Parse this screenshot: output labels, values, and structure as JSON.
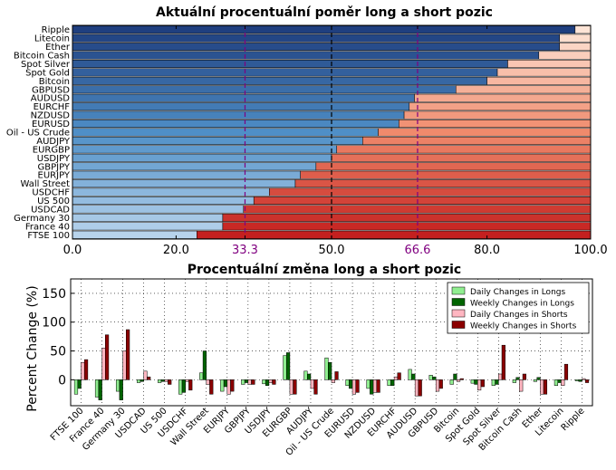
{
  "chart_data": [
    {
      "type": "bar",
      "orientation": "horizontal",
      "stacked": true,
      "title": "Aktuální procentuální poměr long a short pozic",
      "categories": [
        "Ripple",
        "Litecoin",
        "Ether",
        "Bitcoin Cash",
        "Spot Silver",
        "Spot Gold",
        "Bitcoin",
        "GBPUSD",
        "AUDUSD",
        "EURCHF",
        "NZDUSD",
        "EURUSD",
        "Oil - US Crude",
        "AUDJPY",
        "EURGBP",
        "USDJPY",
        "GBPJPY",
        "EURJPY",
        "Wall Street",
        "USDCHF",
        "US 500",
        "USDCAD",
        "Germany 30",
        "France 40",
        "FTSE 100"
      ],
      "series": [
        {
          "role": "long",
          "values": [
            97,
            94,
            94,
            90,
            84,
            82,
            80,
            74,
            66,
            65,
            64,
            63,
            59,
            56,
            51,
            50,
            47,
            44,
            43,
            38,
            35,
            33,
            29,
            29,
            24
          ]
        },
        {
          "role": "short",
          "values": [
            3,
            6,
            6,
            10,
            16,
            18,
            20,
            26,
            34,
            35,
            36,
            37,
            41,
            44,
            49,
            50,
            53,
            56,
            57,
            62,
            65,
            67,
            71,
            71,
            76
          ]
        }
      ],
      "xlim": [
        0,
        100
      ],
      "xticks": [
        "0.0",
        "20.0",
        "33.3",
        "50.0",
        "66.6",
        "80.0",
        "100.0"
      ],
      "reference_lines": [
        {
          "value": 33.3,
          "color": "#800080",
          "style": "dashed"
        },
        {
          "value": 50,
          "color": "#000000",
          "style": "dashed"
        },
        {
          "value": 66.6,
          "color": "#800080",
          "style": "dashed"
        }
      ],
      "colors": {
        "long_dark": "#1f3f7f",
        "long_mid": "#4f8fc7",
        "long_light": "#b7d3ec",
        "short_light": "#fde4d6",
        "short_mid": "#f08a6c",
        "short_dark": "#c4201f"
      }
    },
    {
      "type": "bar",
      "title": "Procentuální změna long a short pozic",
      "ylabel": "Percent Change (%)",
      "categories": [
        "FTSE 100",
        "France 40",
        "Germany 30",
        "USDCAD",
        "US 500",
        "USDCHF",
        "Wall Street",
        "EURJPY",
        "GBPJPY",
        "USDJPY",
        "EURGBP",
        "AUDJPY",
        "Oil - US Crude",
        "EURUSD",
        "NZDUSD",
        "EURCHF",
        "AUDUSD",
        "GBPUSD",
        "Bitcoin",
        "Spot Gold",
        "Spot Silver",
        "Bitcoin Cash",
        "Ether",
        "Litecoin",
        "Ripple"
      ],
      "series": [
        {
          "name": "Daily Changes in Longs",
          "color": "#90ee90",
          "values": [
            -25,
            -30,
            -20,
            -5,
            -5,
            -25,
            12,
            -20,
            -8,
            -7,
            42,
            15,
            38,
            -10,
            -15,
            -10,
            18,
            8,
            -8,
            -6,
            -10,
            -5,
            -3,
            -10,
            -2
          ]
        },
        {
          "name": "Weekly Changes in Longs",
          "color": "#006400",
          "values": [
            -15,
            -35,
            -35,
            -3,
            -3,
            -22,
            50,
            -12,
            -5,
            -10,
            47,
            10,
            30,
            -15,
            -25,
            -10,
            10,
            5,
            10,
            -8,
            -8,
            4,
            4,
            -5,
            -3
          ]
        },
        {
          "name": "Daily Changes in Shorts",
          "color": "#ffb6c1",
          "values": [
            30,
            55,
            50,
            15,
            -3,
            -3,
            -8,
            -25,
            -8,
            -5,
            -25,
            -15,
            -5,
            -25,
            -22,
            5,
            -28,
            -20,
            -3,
            -18,
            10,
            -20,
            -25,
            -10,
            2
          ]
        },
        {
          "name": "Weekly Changes in Shorts",
          "color": "#8b0000",
          "values": [
            35,
            78,
            87,
            5,
            -8,
            -18,
            -25,
            -20,
            -8,
            -8,
            -25,
            -25,
            14,
            -22,
            -22,
            12,
            -28,
            -15,
            2,
            -12,
            60,
            10,
            -25,
            27,
            -5
          ]
        }
      ],
      "ylim": [
        -45,
        175
      ],
      "yticks": [
        "0",
        "50",
        "100",
        "150"
      ],
      "legend_position": "top-right",
      "grid": true
    }
  ]
}
